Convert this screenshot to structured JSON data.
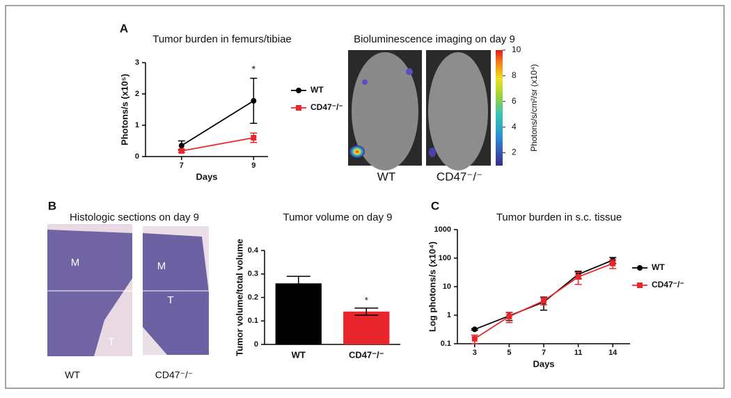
{
  "panel_labels": [
    "A",
    "B",
    "C"
  ],
  "chart_data": [
    {
      "type": "line",
      "title": "Tumor burden in femurs/tibiae",
      "x_label": "Days",
      "y_label": "Photons/s (x10⁵)",
      "x": [
        7,
        9
      ],
      "xlim": [
        6,
        9.4
      ],
      "xticks": [
        7,
        9
      ],
      "ylim": [
        0,
        3
      ],
      "yticks": [
        0,
        1,
        2,
        3
      ],
      "annotation": "*",
      "legend": "right",
      "series": [
        {
          "name": "WT",
          "color": "#000000",
          "marker": "circle",
          "values": [
            0.35,
            1.78
          ],
          "errors": [
            0.15,
            0.72
          ]
        },
        {
          "name": "CD47⁻/⁻",
          "color": "#e8262b",
          "marker": "square",
          "values": [
            0.18,
            0.6
          ],
          "errors": [
            0.05,
            0.15
          ]
        }
      ]
    },
    {
      "type": "bar",
      "title": "Tumor volume on day 9",
      "y_label": "Tumor volume/total volume",
      "categories": [
        "WT",
        "CD47⁻/⁻"
      ],
      "values": [
        0.26,
        0.14
      ],
      "errors": [
        0.03,
        0.015
      ],
      "colors": [
        "#000000",
        "#e8262b"
      ],
      "ylim": [
        0,
        0.4
      ],
      "yticks": [
        0,
        0.1,
        0.2,
        0.3,
        0.4
      ],
      "annotation": "*"
    },
    {
      "type": "line",
      "title": "Tumor burden in s.c. tissue",
      "x_label": "Days",
      "y_label": "Log photons/s (x10⁴)",
      "categories": [
        "3",
        "5",
        "7",
        "11",
        "14"
      ],
      "ylim": [
        0.1,
        1000
      ],
      "log_y": true,
      "yticks": [
        0.1,
        1,
        10,
        100,
        1000
      ],
      "legend": "right",
      "series": [
        {
          "name": "WT",
          "color": "#000000",
          "marker": "circle",
          "values": [
            0.32,
            0.95,
            2.9,
            27,
            85
          ],
          "errors": [
            0.02,
            0.3,
            1.4,
            8,
            20
          ]
        },
        {
          "name": "CD47⁻/⁻",
          "color": "#e8262b",
          "marker": "square",
          "values": [
            0.15,
            0.9,
            3.2,
            22,
            65
          ],
          "errors": [
            0.05,
            0.35,
            0.9,
            10,
            22
          ]
        }
      ]
    }
  ],
  "imaging": {
    "title": "Bioluminescence imaging on day 9",
    "labels": [
      "WT",
      "CD47⁻/⁻"
    ],
    "colorbar": {
      "label": "Photons/s/cm²/sr (x10⁴)",
      "lim": [
        1,
        10
      ],
      "ticks": [
        2,
        4,
        6,
        8,
        10
      ]
    }
  },
  "histology": {
    "title": "Histologic sections on day 9",
    "labels": [
      "WT",
      "CD47⁻/⁻"
    ],
    "regions": [
      "M",
      "T",
      "M",
      "T"
    ]
  }
}
